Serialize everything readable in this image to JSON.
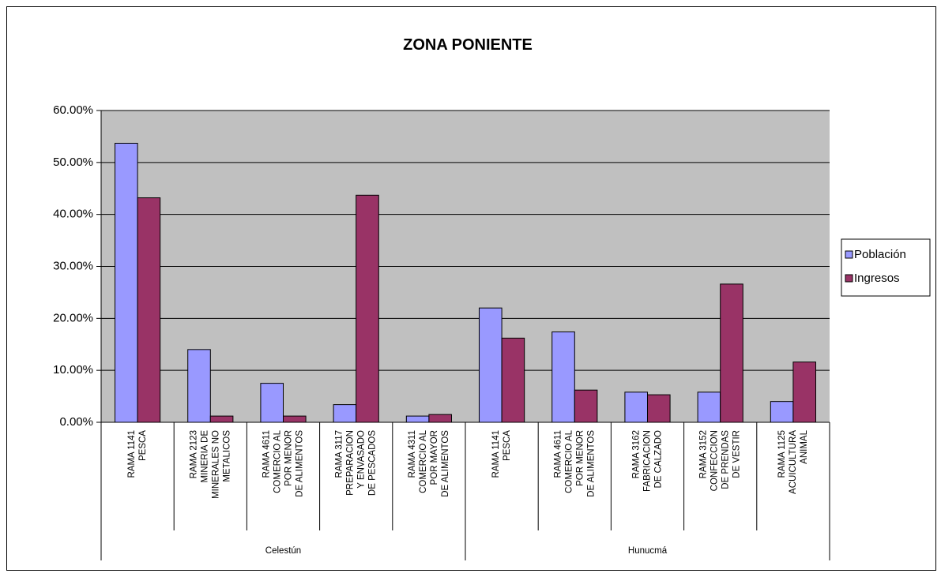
{
  "chart_data": {
    "type": "bar",
    "title": "ZONA PONIENTE",
    "groups": [
      {
        "name": "Celestún",
        "categories": [
          [
            "RAMA 1141",
            "PESCA"
          ],
          [
            "RAMA 2123",
            "MINERIA DE",
            "MINERALES NO",
            "METALICOS"
          ],
          [
            "RAMA 4611",
            "COMERCIO AL",
            "POR MENOR",
            "DE ALIMENTOS"
          ],
          [
            "RAMA 3117",
            "PREPARACION",
            "Y ENVASADO",
            "DE PESCADOS"
          ],
          [
            "RAMA 4311",
            "COMERCIO AL",
            "POR MAYOR",
            "DE ALIMENTOS"
          ]
        ]
      },
      {
        "name": "Hunucmá",
        "categories": [
          [
            "RAMA 1141",
            "PESCA"
          ],
          [
            "RAMA 4611",
            "COMERCIO AL",
            "POR MENOR",
            "DE ALIMENTOS"
          ],
          [
            "RAMA 3162",
            "FABRICACION",
            "DE CALZADO"
          ],
          [
            "RAMA 3152",
            "CONFECCION",
            "DE PRENDAS",
            "DE VESTIR"
          ],
          [
            "RAMA 1125",
            "ACUICULTURA",
            "ANIMAL"
          ]
        ]
      }
    ],
    "series": [
      {
        "name": "Población",
        "color": "#9999ff",
        "values": [
          53.7,
          14.0,
          7.5,
          3.4,
          1.2,
          22.0,
          17.4,
          5.8,
          5.8,
          4.0
        ]
      },
      {
        "name": "Ingresos",
        "color": "#993366",
        "values": [
          43.2,
          1.2,
          1.2,
          43.7,
          1.5,
          16.2,
          6.2,
          5.3,
          26.6,
          11.6
        ]
      }
    ],
    "ylim": [
      0,
      60
    ],
    "yticks": [
      {
        "value": 0,
        "label": "0.00%"
      },
      {
        "value": 10,
        "label": "10.00%"
      },
      {
        "value": 20,
        "label": "20.00%"
      },
      {
        "value": 30,
        "label": "30.00%"
      },
      {
        "value": 40,
        "label": "40.00%"
      },
      {
        "value": 50,
        "label": "50.00%"
      },
      {
        "value": 60,
        "label": "60.00%"
      }
    ],
    "grid": true,
    "legend": "right",
    "plot_background": "#c0c0c0"
  }
}
